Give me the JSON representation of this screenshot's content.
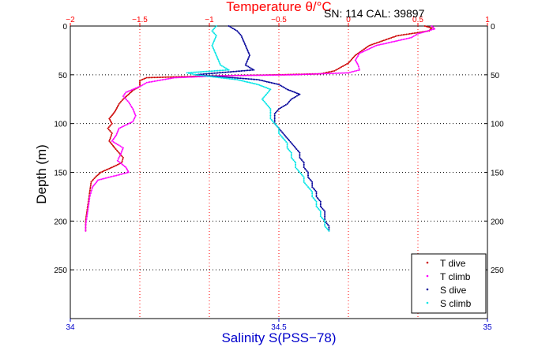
{
  "chart_data": {
    "type": "scatter",
    "title": "SN: 114  CAL: 39897",
    "top_axis": {
      "label": "Temperature θ/°C",
      "range": [
        -2,
        1
      ],
      "ticks": [
        -2,
        -1.5,
        -1,
        -0.5,
        0,
        0.5,
        1
      ],
      "tick_labels": [
        "−2",
        "−1.5",
        "−1",
        "−0.5",
        "0",
        "0.5",
        "1"
      ],
      "color": "#ff0000"
    },
    "bottom_axis": {
      "label": "Salinity S(PSS−78)",
      "range": [
        34,
        35
      ],
      "ticks": [
        34,
        34.5,
        35
      ],
      "tick_labels": [
        "34",
        "34.5",
        "35"
      ],
      "color": "#0000cc"
    },
    "y_axis": {
      "label": "Depth (m)",
      "range": [
        0,
        300
      ],
      "reversed": true,
      "ticks": [
        0,
        50,
        100,
        150,
        200,
        250
      ],
      "tick_labels": [
        "0",
        "50",
        "100",
        "150",
        "200",
        "250"
      ]
    },
    "grid": true,
    "legend_position": "bottom-right",
    "series": [
      {
        "name": "T dive",
        "axis": "temperature",
        "color": "#cc0000",
        "points": [
          [
            0.55,
            0
          ],
          [
            0.6,
            2
          ],
          [
            0.58,
            5
          ],
          [
            0.35,
            10
          ],
          [
            0.15,
            20
          ],
          [
            0.05,
            30
          ],
          [
            0.0,
            38
          ],
          [
            -0.05,
            42
          ],
          [
            -0.1,
            46
          ],
          [
            -0.2,
            49
          ],
          [
            -0.5,
            50
          ],
          [
            -0.9,
            51
          ],
          [
            -1.2,
            52
          ],
          [
            -1.45,
            53
          ],
          [
            -1.5,
            56
          ],
          [
            -1.5,
            62
          ],
          [
            -1.55,
            66
          ],
          [
            -1.58,
            70
          ],
          [
            -1.62,
            75
          ],
          [
            -1.65,
            80
          ],
          [
            -1.68,
            88
          ],
          [
            -1.72,
            95
          ],
          [
            -1.7,
            100
          ],
          [
            -1.73,
            105
          ],
          [
            -1.7,
            110
          ],
          [
            -1.72,
            118
          ],
          [
            -1.68,
            125
          ],
          [
            -1.65,
            130
          ],
          [
            -1.62,
            135
          ],
          [
            -1.63,
            140
          ],
          [
            -1.67,
            143
          ],
          [
            -1.78,
            150
          ],
          [
            -1.82,
            155
          ],
          [
            -1.85,
            160
          ],
          [
            -1.86,
            170
          ],
          [
            -1.87,
            180
          ],
          [
            -1.88,
            190
          ],
          [
            -1.89,
            200
          ],
          [
            -1.89,
            210
          ]
        ]
      },
      {
        "name": "T climb",
        "axis": "temperature",
        "color": "#ff00ff",
        "points": [
          [
            0.6,
            0
          ],
          [
            0.62,
            3
          ],
          [
            0.5,
            8
          ],
          [
            0.45,
            12
          ],
          [
            0.2,
            20
          ],
          [
            0.08,
            28
          ],
          [
            0.05,
            35
          ],
          [
            0.07,
            40
          ],
          [
            0.08,
            45
          ],
          [
            0.0,
            48
          ],
          [
            -0.4,
            50
          ],
          [
            -0.9,
            51
          ],
          [
            -1.25,
            53
          ],
          [
            -1.45,
            58
          ],
          [
            -1.5,
            62
          ],
          [
            -1.6,
            68
          ],
          [
            -1.62,
            72
          ],
          [
            -1.58,
            78
          ],
          [
            -1.55,
            85
          ],
          [
            -1.53,
            92
          ],
          [
            -1.55,
            98
          ],
          [
            -1.65,
            105
          ],
          [
            -1.67,
            112
          ],
          [
            -1.7,
            118
          ],
          [
            -1.62,
            125
          ],
          [
            -1.64,
            132
          ],
          [
            -1.66,
            138
          ],
          [
            -1.6,
            145
          ],
          [
            -1.58,
            150
          ],
          [
            -1.8,
            158
          ],
          [
            -1.84,
            165
          ],
          [
            -1.86,
            175
          ],
          [
            -1.87,
            185
          ],
          [
            -1.88,
            195
          ],
          [
            -1.89,
            205
          ],
          [
            -1.89,
            210
          ]
        ]
      },
      {
        "name": "S dive",
        "axis": "salinity",
        "color": "#000099",
        "points": [
          [
            34.38,
            0
          ],
          [
            34.4,
            5
          ],
          [
            34.41,
            10
          ],
          [
            34.42,
            20
          ],
          [
            34.43,
            30
          ],
          [
            34.42,
            40
          ],
          [
            34.44,
            45
          ],
          [
            34.3,
            50
          ],
          [
            34.45,
            55
          ],
          [
            34.5,
            60
          ],
          [
            34.52,
            65
          ],
          [
            34.55,
            70
          ],
          [
            34.53,
            75
          ],
          [
            34.52,
            80
          ],
          [
            34.5,
            85
          ],
          [
            34.49,
            90
          ],
          [
            34.49,
            95
          ],
          [
            34.49,
            100
          ],
          [
            34.5,
            105
          ],
          [
            34.51,
            110
          ],
          [
            34.52,
            115
          ],
          [
            34.53,
            120
          ],
          [
            34.54,
            125
          ],
          [
            34.55,
            130
          ],
          [
            34.55,
            135
          ],
          [
            34.56,
            140
          ],
          [
            34.56,
            145
          ],
          [
            34.57,
            150
          ],
          [
            34.57,
            155
          ],
          [
            34.58,
            160
          ],
          [
            34.58,
            165
          ],
          [
            34.59,
            170
          ],
          [
            34.59,
            175
          ],
          [
            34.6,
            180
          ],
          [
            34.6,
            185
          ],
          [
            34.61,
            190
          ],
          [
            34.61,
            195
          ],
          [
            34.61,
            200
          ],
          [
            34.62,
            205
          ],
          [
            34.62,
            210
          ]
        ]
      },
      {
        "name": "S climb",
        "axis": "salinity",
        "color": "#00e5e5",
        "points": [
          [
            34.35,
            0
          ],
          [
            34.34,
            5
          ],
          [
            34.35,
            10
          ],
          [
            34.34,
            20
          ],
          [
            34.35,
            30
          ],
          [
            34.36,
            40
          ],
          [
            34.38,
            45
          ],
          [
            34.28,
            48
          ],
          [
            34.3,
            50
          ],
          [
            34.4,
            55
          ],
          [
            34.45,
            60
          ],
          [
            34.48,
            65
          ],
          [
            34.47,
            70
          ],
          [
            34.46,
            75
          ],
          [
            34.47,
            80
          ],
          [
            34.48,
            85
          ],
          [
            34.48,
            90
          ],
          [
            34.48,
            95
          ],
          [
            34.49,
            100
          ],
          [
            34.5,
            105
          ],
          [
            34.5,
            110
          ],
          [
            34.51,
            115
          ],
          [
            34.52,
            120
          ],
          [
            34.52,
            125
          ],
          [
            34.53,
            130
          ],
          [
            34.53,
            135
          ],
          [
            34.54,
            140
          ],
          [
            34.54,
            145
          ],
          [
            34.55,
            150
          ],
          [
            34.56,
            155
          ],
          [
            34.56,
            160
          ],
          [
            34.57,
            165
          ],
          [
            34.58,
            170
          ],
          [
            34.58,
            175
          ],
          [
            34.59,
            180
          ],
          [
            34.59,
            185
          ],
          [
            34.6,
            190
          ],
          [
            34.6,
            195
          ],
          [
            34.61,
            200
          ],
          [
            34.61,
            205
          ],
          [
            34.62,
            210
          ]
        ]
      }
    ]
  }
}
